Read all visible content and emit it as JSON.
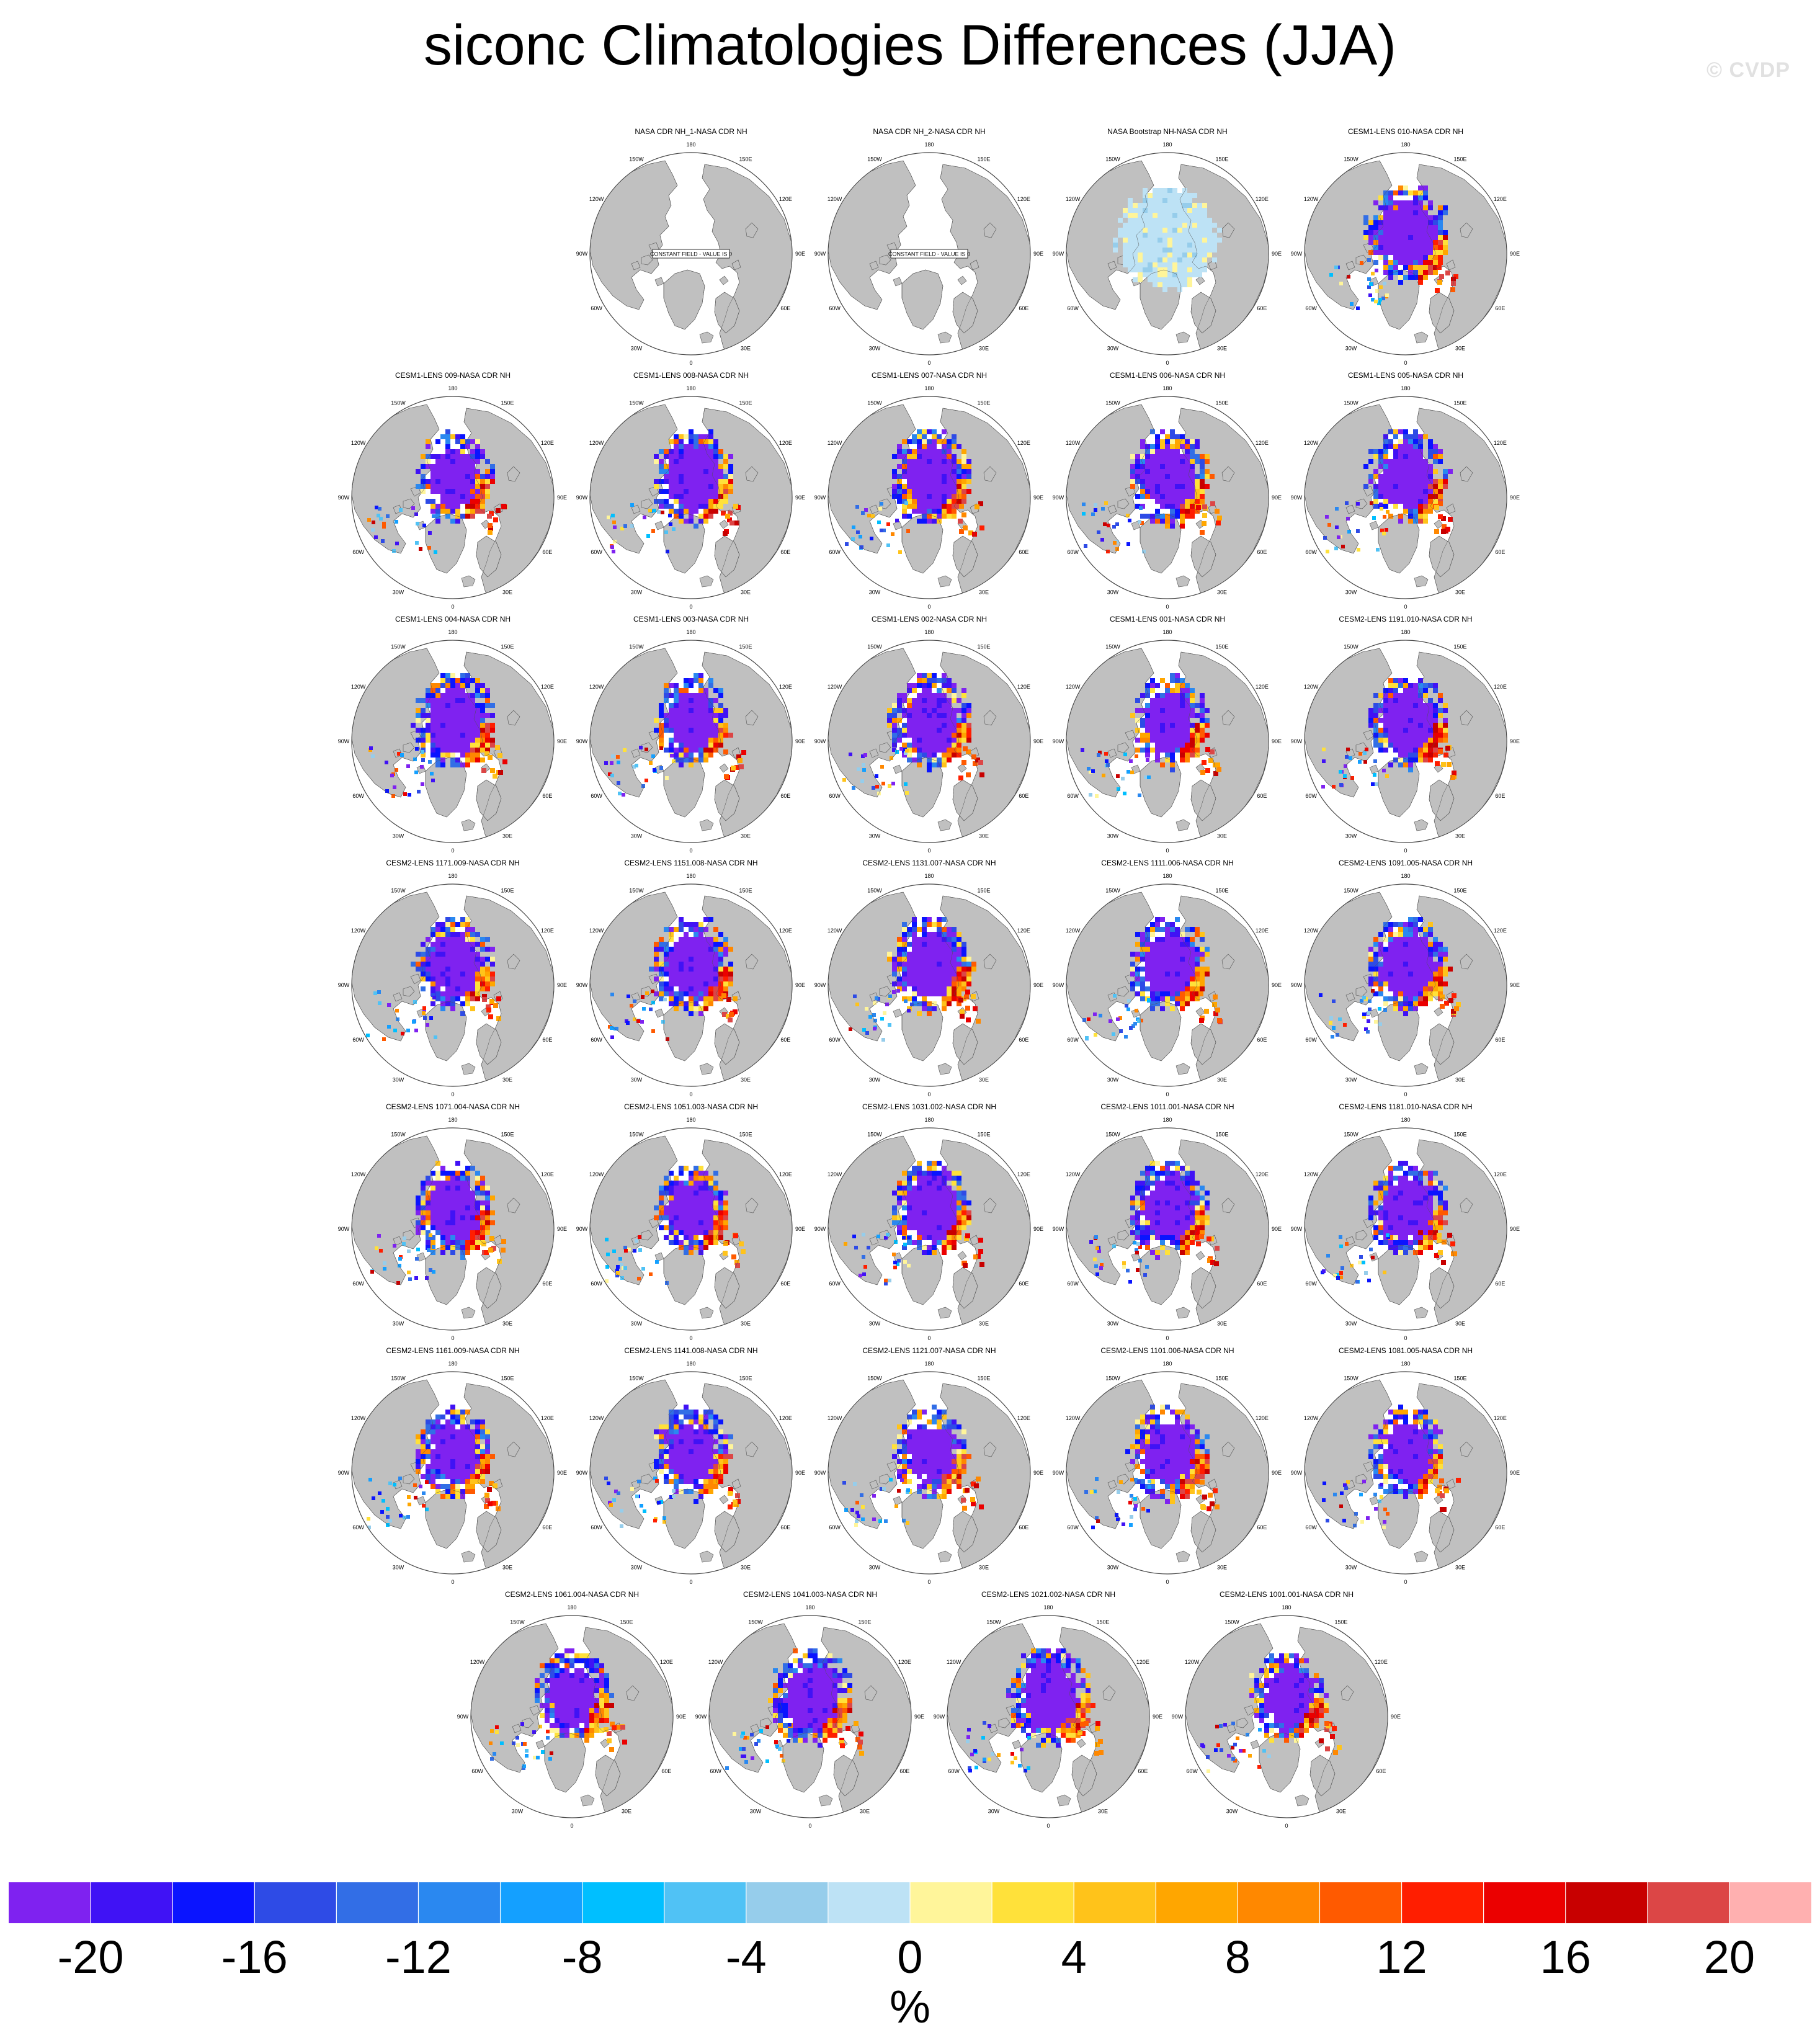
{
  "figure": {
    "title": "siconc Climatologies Differences (JJA)",
    "watermark": "© CVDP"
  },
  "map_style": {
    "projection": "north-polar-stereographic",
    "land_color": "#c0c0c0",
    "ocean_color": "#ffffff",
    "coastline_color": "#505050",
    "constant_field_note": "CONSTANT FIELD - VALUE IS 0",
    "lon_labels": [
      "180",
      "150E",
      "120E",
      "90E",
      "60E",
      "30E",
      "0",
      "30W",
      "60W",
      "90W",
      "120W",
      "150W"
    ]
  },
  "panels": [
    {
      "title": "NASA CDR NH_1-NASA CDR NH",
      "type": "constant"
    },
    {
      "title": "NASA CDR NH_2-NASA CDR NH",
      "type": "constant"
    },
    {
      "title": "NASA Bootstrap NH-NASA CDR NH",
      "type": "bootstrap"
    },
    {
      "title": "CESM1-LENS 010-NASA CDR NH",
      "type": "model"
    },
    {
      "title": "CESM1-LENS 009-NASA CDR NH",
      "type": "model"
    },
    {
      "title": "CESM1-LENS 008-NASA CDR NH",
      "type": "model"
    },
    {
      "title": "CESM1-LENS 007-NASA CDR NH",
      "type": "model"
    },
    {
      "title": "CESM1-LENS 006-NASA CDR NH",
      "type": "model"
    },
    {
      "title": "CESM1-LENS 005-NASA CDR NH",
      "type": "model"
    },
    {
      "title": "CESM1-LENS 004-NASA CDR NH",
      "type": "model"
    },
    {
      "title": "CESM1-LENS 003-NASA CDR NH",
      "type": "model"
    },
    {
      "title": "CESM1-LENS 002-NASA CDR NH",
      "type": "model"
    },
    {
      "title": "CESM1-LENS 001-NASA CDR NH",
      "type": "model"
    },
    {
      "title": "CESM2-LENS 1191.010-NASA CDR NH",
      "type": "model"
    },
    {
      "title": "CESM2-LENS 1171.009-NASA CDR NH",
      "type": "model"
    },
    {
      "title": "CESM2-LENS 1151.008-NASA CDR NH",
      "type": "model"
    },
    {
      "title": "CESM2-LENS 1131.007-NASA CDR NH",
      "type": "model"
    },
    {
      "title": "CESM2-LENS 1111.006-NASA CDR NH",
      "type": "model"
    },
    {
      "title": "CESM2-LENS 1091.005-NASA CDR NH",
      "type": "model"
    },
    {
      "title": "CESM2-LENS 1071.004-NASA CDR NH",
      "type": "model"
    },
    {
      "title": "CESM2-LENS 1051.003-NASA CDR NH",
      "type": "model"
    },
    {
      "title": "CESM2-LENS 1031.002-NASA CDR NH",
      "type": "model"
    },
    {
      "title": "CESM2-LENS 1011.001-NASA CDR NH",
      "type": "model"
    },
    {
      "title": "CESM2-LENS 1181.010-NASA CDR NH",
      "type": "model"
    },
    {
      "title": "CESM2-LENS 1161.009-NASA CDR NH",
      "type": "model"
    },
    {
      "title": "CESM2-LENS 1141.008-NASA CDR NH",
      "type": "model"
    },
    {
      "title": "CESM2-LENS 1121.007-NASA CDR NH",
      "type": "model"
    },
    {
      "title": "CESM2-LENS 1101.006-NASA CDR NH",
      "type": "model"
    },
    {
      "title": "CESM2-LENS 1081.005-NASA CDR NH",
      "type": "model"
    },
    {
      "title": "CESM2-LENS 1061.004-NASA CDR NH",
      "type": "model"
    },
    {
      "title": "CESM2-LENS 1041.003-NASA CDR NH",
      "type": "model"
    },
    {
      "title": "CESM2-LENS 1021.002-NASA CDR NH",
      "type": "model"
    },
    {
      "title": "CESM2-LENS 1001.001-NASA CDR NH",
      "type": "model"
    }
  ],
  "colorbar": {
    "unit": "%",
    "labels": [
      "-20",
      "-16",
      "-12",
      "-8",
      "-4",
      "0",
      "4",
      "8",
      "12",
      "16",
      "20"
    ],
    "colors": [
      "#7f22f0",
      "#4012f5",
      "#0a14ff",
      "#2e4be6",
      "#326ee6",
      "#2a88f0",
      "#14a0ff",
      "#00bfff",
      "#50c2f5",
      "#96cdeb",
      "#bde2f5",
      "#fff59a",
      "#ffe13a",
      "#ffc31a",
      "#ffa600",
      "#ff8800",
      "#ff5a00",
      "#ff1e00",
      "#eb0000",
      "#c80000",
      "#dc4646",
      "#ffb0b0"
    ]
  }
}
